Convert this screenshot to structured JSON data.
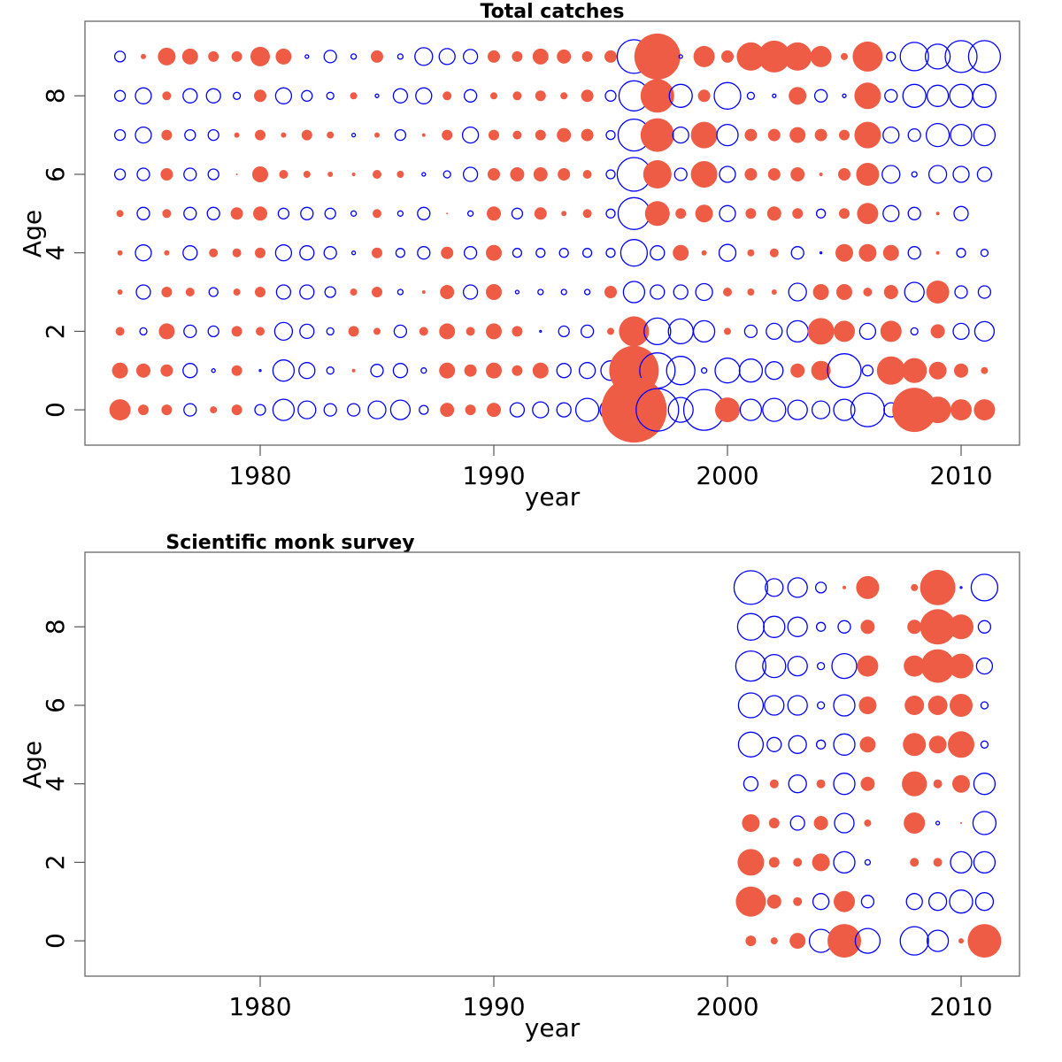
{
  "chart_data": [
    {
      "type": "scatter",
      "subtype": "bubble",
      "title": "Total catches",
      "xlabel": "year",
      "ylabel": "Age",
      "xlim": [
        1972.5,
        2012.5
      ],
      "ylim": [
        -0.9,
        9.9
      ],
      "xticks": [
        1980,
        1990,
        2000,
        2010
      ],
      "yticks": [
        0,
        2,
        4,
        6,
        8
      ],
      "encoding": "value sign: positive = filled red circle, negative = open blue circle; circle radius proportional to sqrt(|value|)",
      "years": [
        1974,
        1975,
        1976,
        1977,
        1978,
        1979,
        1980,
        1981,
        1982,
        1983,
        1984,
        1985,
        1986,
        1987,
        1988,
        1989,
        1990,
        1991,
        1992,
        1993,
        1994,
        1995,
        1996,
        1997,
        1998,
        1999,
        2000,
        2001,
        2002,
        2003,
        2004,
        2005,
        2006,
        2007,
        2008,
        2009,
        2010,
        2011
      ],
      "series": [
        {
          "age": 9,
          "values": [
            -0.36,
            0.09,
            1.0,
            0.81,
            0.36,
            0.36,
            1.21,
            0.81,
            -0.04,
            -0.49,
            -0.09,
            0.49,
            -0.09,
            -1.0,
            -0.81,
            -0.64,
            0.49,
            0.36,
            0.81,
            0.64,
            0.36,
            0.49,
            -3.61,
            6.76,
            -0.04,
            1.44,
            0.49,
            2.56,
            3.24,
            2.56,
            1.44,
            0.16,
            2.89,
            -0.25,
            -2.56,
            -1.96,
            -3.24,
            -3.24
          ]
        },
        {
          "age": 8,
          "values": [
            -0.36,
            -0.81,
            0.25,
            -0.64,
            -0.64,
            -0.16,
            0.49,
            -0.81,
            -0.36,
            -0.16,
            0.16,
            -0.04,
            -0.64,
            -0.81,
            0.25,
            -0.49,
            0.16,
            0.25,
            0.36,
            0.16,
            0.49,
            -0.36,
            -2.89,
            3.61,
            -1.69,
            0.49,
            -2.25,
            -0.16,
            -0.04,
            1.0,
            -0.49,
            -0.04,
            2.25,
            -0.49,
            -1.69,
            -1.44,
            -1.69,
            -1.69
          ]
        },
        {
          "age": 7,
          "values": [
            -0.36,
            -0.81,
            0.36,
            -0.36,
            -0.36,
            0.09,
            0.36,
            0.09,
            0.36,
            0.16,
            -0.04,
            0.09,
            -0.36,
            0.04,
            0.36,
            -0.81,
            0.36,
            0.25,
            0.36,
            0.64,
            0.49,
            -0.25,
            -3.24,
            3.61,
            -0.81,
            2.25,
            -1.44,
            0.49,
            0.49,
            0.81,
            0.49,
            0.36,
            2.25,
            -0.81,
            -0.49,
            -1.69,
            -1.44,
            -1.44
          ]
        },
        {
          "age": 6,
          "values": [
            -0.36,
            -0.49,
            0.49,
            -0.49,
            -0.36,
            0.01,
            0.81,
            0.25,
            0.16,
            0.09,
            0.04,
            0.25,
            0.16,
            -0.04,
            -0.16,
            -0.64,
            0.49,
            0.64,
            0.64,
            0.49,
            0.25,
            -0.25,
            -3.61,
            2.56,
            -0.49,
            2.25,
            -0.81,
            0.49,
            0.49,
            0.64,
            0.04,
            0.49,
            1.69,
            -1.0,
            -0.09,
            -1.0,
            -0.81,
            -0.64
          ]
        },
        {
          "age": 5,
          "values": [
            0.16,
            -0.49,
            0.25,
            -0.49,
            -0.49,
            0.49,
            0.64,
            -0.36,
            -0.49,
            -0.36,
            -0.09,
            0.25,
            -0.09,
            -0.49,
            0.01,
            -0.09,
            0.64,
            -0.36,
            0.49,
            0.09,
            0.25,
            -0.25,
            -3.24,
            1.96,
            0.36,
            1.0,
            -0.81,
            0.36,
            0.64,
            0.36,
            -0.25,
            0.36,
            1.44,
            -0.81,
            -0.49,
            0.04,
            -0.64,
            0
          ]
        },
        {
          "age": 4,
          "values": [
            0.09,
            -0.81,
            0.09,
            -0.64,
            0.25,
            0.25,
            0.36,
            -0.81,
            -0.64,
            -0.49,
            -0.04,
            0.36,
            -0.25,
            -0.49,
            0.49,
            -0.49,
            0.81,
            -0.25,
            -0.25,
            -0.25,
            -0.25,
            -0.25,
            -2.25,
            -0.64,
            0.81,
            0.09,
            -0.9,
            0.16,
            0.25,
            -0.49,
            -0.01,
            1.0,
            1.0,
            0.81,
            -0.49,
            0.04,
            -0.25,
            -0.16
          ]
        },
        {
          "age": 3,
          "values": [
            0.09,
            -0.64,
            0.36,
            0.25,
            -0.25,
            0.16,
            0.36,
            -0.64,
            -0.64,
            -0.36,
            0.16,
            0.36,
            -0.09,
            0.04,
            0.64,
            -0.64,
            0.81,
            -0.04,
            -0.09,
            -0.09,
            -0.09,
            0.49,
            -1.44,
            -0.64,
            -0.64,
            -0.9,
            0.25,
            0.16,
            0.09,
            -1.0,
            0.81,
            0.81,
            0.25,
            0.64,
            -1.21,
            1.69,
            -0.49,
            -0.49
          ]
        },
        {
          "age": 2,
          "values": [
            0.25,
            -0.16,
            0.81,
            -0.49,
            -0.36,
            0.36,
            0.25,
            -1.0,
            -0.64,
            -0.16,
            0.36,
            0.16,
            -0.49,
            0.25,
            0.81,
            0.25,
            0.81,
            0.36,
            -0.01,
            -0.36,
            -0.49,
            0.16,
            2.89,
            -2.25,
            -1.96,
            -1.44,
            0.16,
            -0.49,
            -0.81,
            -1.44,
            2.25,
            1.44,
            -0.81,
            1.44,
            -0.16,
            0.64,
            -0.81,
            -1.21
          ]
        },
        {
          "age": 1,
          "values": [
            0.81,
            0.64,
            0.49,
            -0.64,
            -0.04,
            0.36,
            -0.01,
            -1.44,
            -0.81,
            -0.16,
            0.04,
            -0.49,
            -0.64,
            -0.09,
            0.81,
            0.49,
            0.81,
            0.36,
            0.81,
            -0.64,
            -0.81,
            -1.21,
            7.84,
            -4.0,
            -2.56,
            -0.09,
            -1.96,
            -1.69,
            -1.0,
            0.64,
            1.21,
            -3.61,
            -0.36,
            2.56,
            2.0,
            1.0,
            0.64,
            0.16
          ]
        },
        {
          "age": 0,
          "values": [
            1.44,
            0.36,
            0.36,
            -0.49,
            0.16,
            0.36,
            -0.36,
            -1.44,
            -1.0,
            -0.49,
            -0.49,
            -1.0,
            -1.21,
            -0.25,
            0.64,
            0.36,
            0.64,
            -0.64,
            -0.81,
            -0.64,
            -1.69,
            -1.44,
            13.7,
            -5.76,
            -1.96,
            -5.29,
            1.96,
            -1.44,
            -1.69,
            -1.21,
            -1.0,
            -1.44,
            -3.61,
            -0.64,
            6.25,
            2.25,
            1.44,
            1.44
          ]
        }
      ]
    },
    {
      "type": "scatter",
      "subtype": "bubble",
      "title": "Scientific monk survey",
      "xlabel": "year",
      "ylabel": "Age",
      "xlim": [
        1972.5,
        2012.5
      ],
      "ylim": [
        -0.9,
        9.9
      ],
      "xticks": [
        1980,
        1990,
        2000,
        2010
      ],
      "yticks": [
        0,
        2,
        4,
        6,
        8
      ],
      "encoding": "value sign: positive = filled red circle, negative = open blue circle; circle radius proportional to sqrt(|value|)",
      "years": [
        2001,
        2002,
        2003,
        2004,
        2005,
        2006,
        2007,
        2008,
        2009,
        2010,
        2011
      ],
      "series": [
        {
          "age": 9,
          "values": [
            -3.61,
            -1.0,
            -1.21,
            -0.36,
            0.04,
            1.69,
            null,
            0.16,
            4.0,
            -0.01,
            -2.25
          ]
        },
        {
          "age": 8,
          "values": [
            -2.25,
            -1.44,
            -1.21,
            -0.25,
            -0.49,
            0.64,
            null,
            0.64,
            4.0,
            1.96,
            -0.49
          ]
        },
        {
          "age": 7,
          "values": [
            -2.89,
            -1.69,
            -1.21,
            -0.16,
            -1.96,
            1.44,
            null,
            1.44,
            3.61,
            1.96,
            -0.81
          ]
        },
        {
          "age": 6,
          "values": [
            -1.96,
            -1.21,
            -1.21,
            -0.16,
            -1.44,
            1.0,
            null,
            1.21,
            1.21,
            1.69,
            -0.16
          ]
        },
        {
          "age": 5,
          "values": [
            -1.96,
            -0.64,
            -1.0,
            -0.25,
            -1.44,
            0.81,
            null,
            1.69,
            1.0,
            2.25,
            -0.16
          ]
        },
        {
          "age": 4,
          "values": [
            -0.64,
            0.25,
            -1.0,
            0.25,
            -1.44,
            0.64,
            null,
            2.0,
            0.25,
            1.0,
            -1.44
          ]
        },
        {
          "age": 3,
          "values": [
            1.0,
            0.36,
            -0.64,
            0.64,
            -1.21,
            0.16,
            null,
            1.44,
            -0.04,
            0.01,
            -1.69
          ]
        },
        {
          "age": 2,
          "values": [
            2.25,
            0.36,
            0.25,
            1.0,
            -1.44,
            -0.09,
            null,
            0.25,
            0.25,
            -1.44,
            -1.44
          ]
        },
        {
          "age": 1,
          "values": [
            2.89,
            0.64,
            0.25,
            -0.81,
            1.44,
            -0.49,
            null,
            -0.81,
            -1.0,
            -1.69,
            -1.0
          ]
        },
        {
          "age": 0,
          "values": [
            0.36,
            0.16,
            0.81,
            -1.69,
            3.61,
            -1.96,
            null,
            -2.56,
            -1.44,
            0.09,
            3.61
          ]
        }
      ]
    }
  ],
  "colors": {
    "positive": "#ef5c45",
    "negative": "#0000ff"
  }
}
